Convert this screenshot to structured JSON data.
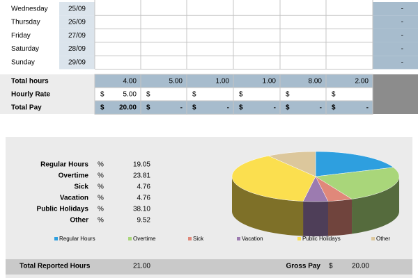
{
  "timesheet": {
    "days": [
      {
        "day": "Wednesday",
        "date": "25/09",
        "total": "-"
      },
      {
        "day": "Thursday",
        "date": "26/09",
        "total": "-"
      },
      {
        "day": "Friday",
        "date": "27/09",
        "total": "-"
      },
      {
        "day": "Saturday",
        "date": "28/09",
        "total": "-"
      },
      {
        "day": "Sunday",
        "date": "29/09",
        "total": "-"
      }
    ],
    "currency": "$",
    "total_hours": {
      "label": "Total hours",
      "values": [
        "4.00",
        "5.00",
        "1.00",
        "1.00",
        "8.00",
        "2.00"
      ]
    },
    "hourly_rate": {
      "label": "Hourly Rate",
      "values": [
        "5.00",
        null,
        null,
        null,
        null,
        null
      ]
    },
    "total_pay": {
      "label": "Total Pay",
      "values": [
        "20.00",
        "-",
        "-",
        "-",
        "-",
        "-"
      ]
    }
  },
  "breakdown": {
    "type": "pie",
    "unit": "%",
    "categories": [
      "Regular Hours",
      "Overtime",
      "Sick",
      "Vacation",
      "Public Holidays",
      "Other"
    ],
    "values": [
      19.05,
      23.81,
      4.76,
      4.76,
      38.1,
      9.52
    ],
    "value_labels": [
      "19.05",
      "23.81",
      "4.76",
      "4.76",
      "38.10",
      "9.52"
    ],
    "colors": [
      "#2e9fdf",
      "#a9d67a",
      "#e0887a",
      "#9c7bb0",
      "#fbdf4f",
      "#dcc79c"
    ]
  },
  "footer": {
    "total_label": "Total Reported Hours",
    "total_value": "21.00",
    "gross_label": "Gross Pay",
    "gross_value": "20.00"
  }
}
